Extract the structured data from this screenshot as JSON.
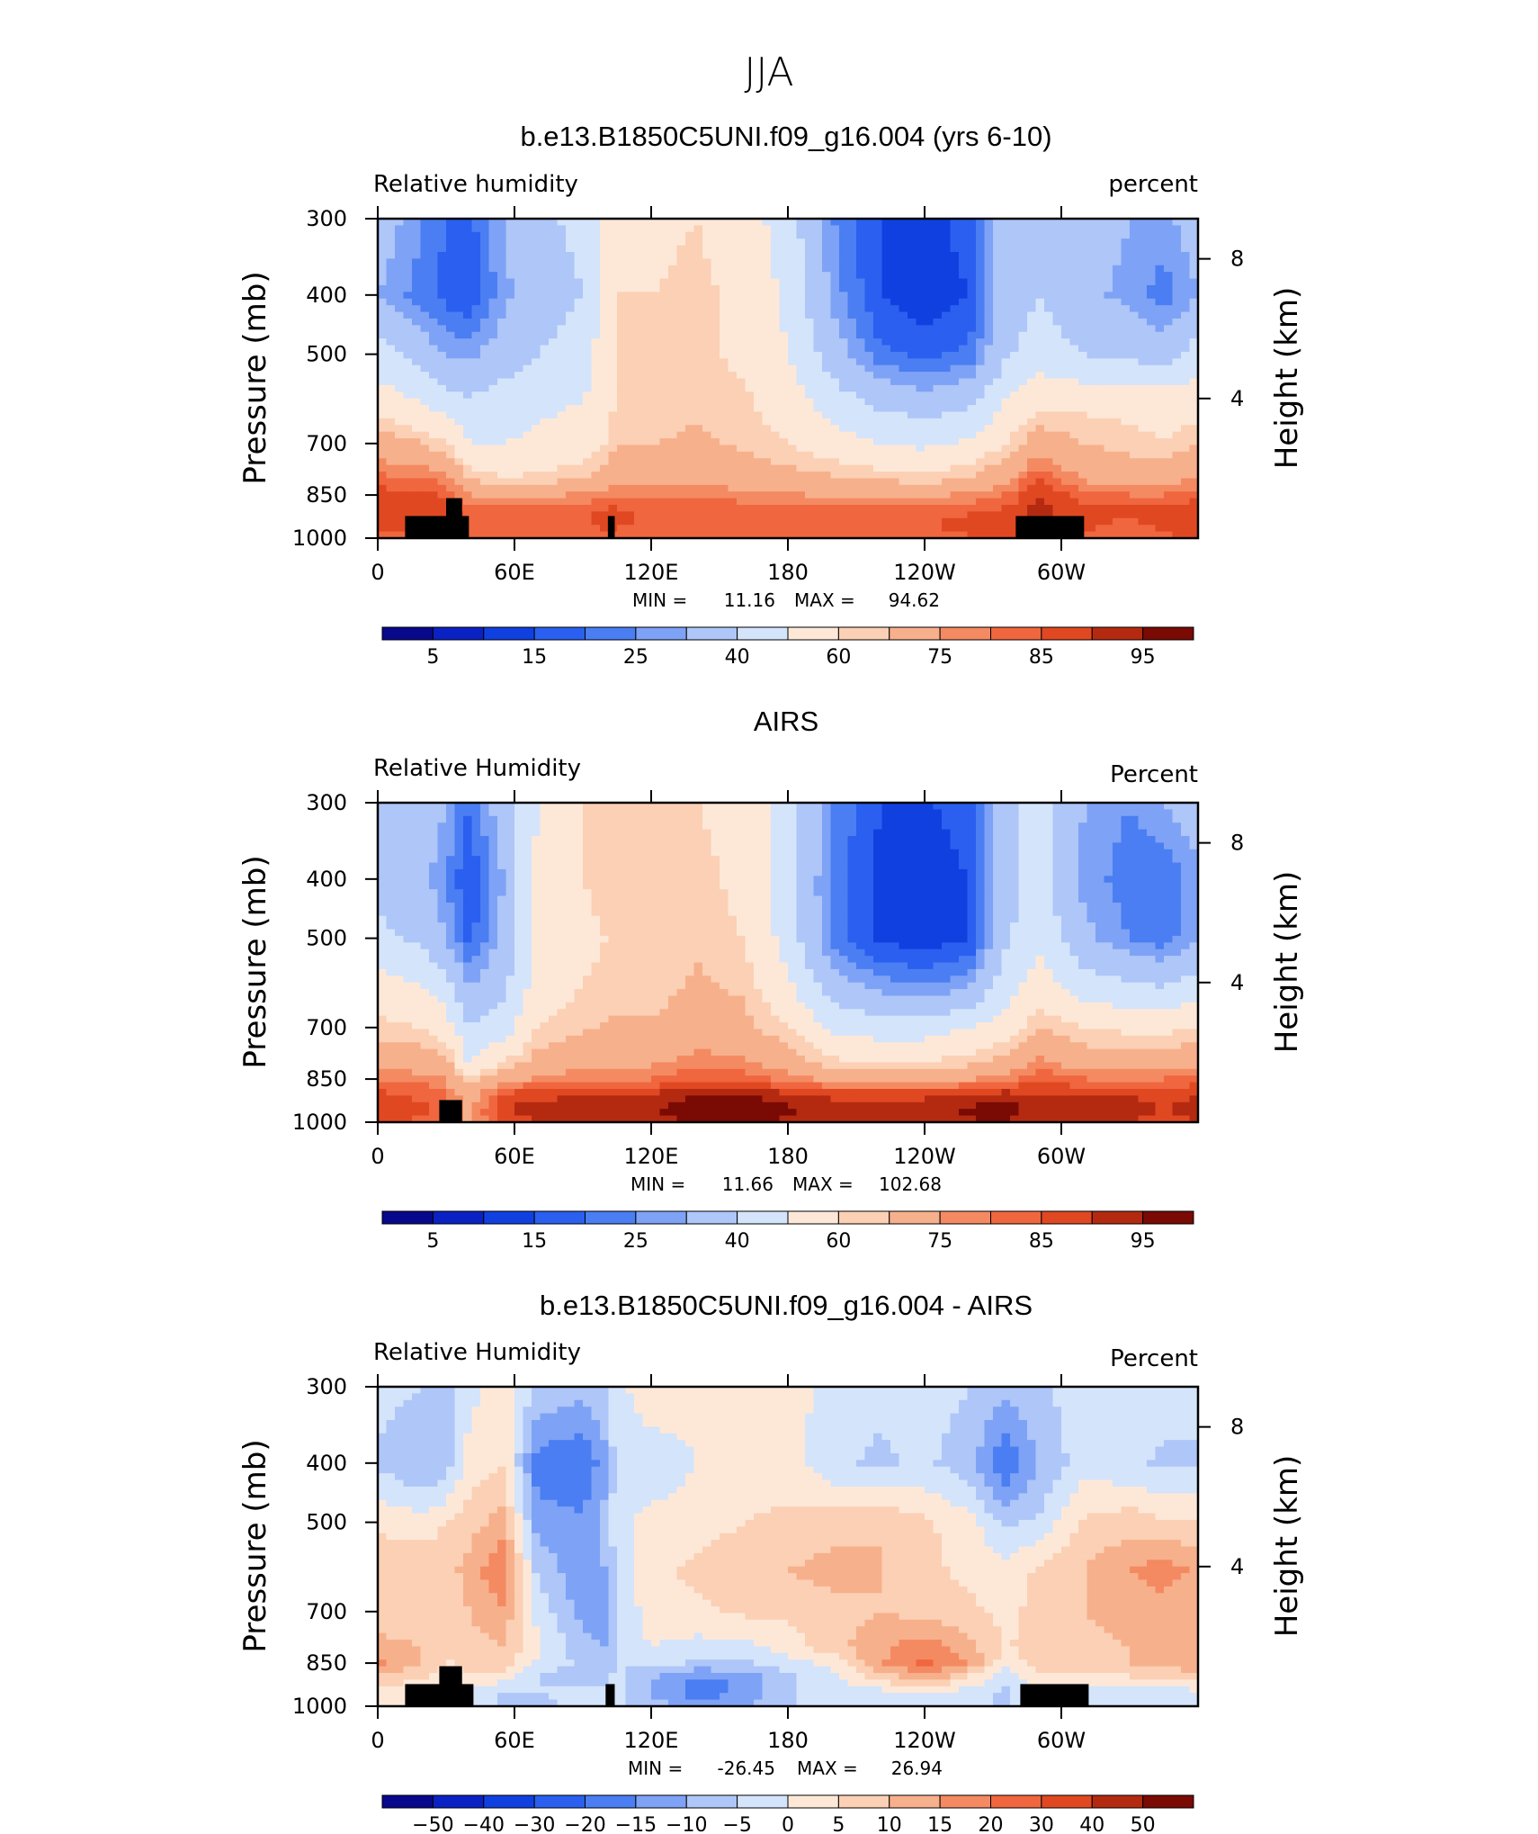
{
  "figure": {
    "title": "JJA"
  },
  "colors": {
    "rh_palette": [
      "#08088c",
      "#0a22c4",
      "#1140e0",
      "#2a5ff0",
      "#4a7ef2",
      "#7ea2f5",
      "#aec6f8",
      "#d4e4fb",
      "#fde8d8",
      "#fbd0b4",
      "#f7b08c",
      "#f48a62",
      "#f0663e",
      "#e04822",
      "#b42a10",
      "#7a0a04"
    ],
    "diff_palette": [
      "#08088c",
      "#0a22c4",
      "#1140e0",
      "#2a5ff0",
      "#4a7ef2",
      "#7ea2f5",
      "#aec6f8",
      "#d4e4fb",
      "#fde8d8",
      "#fbd0b4",
      "#f7b08c",
      "#f48a62",
      "#f0663e",
      "#e04822",
      "#b42a10",
      "#7a0a04"
    ],
    "terrain": "#000000"
  },
  "chart_data": [
    {
      "type": "heatmap",
      "title": "b.e13.B1850C5UNI.f09_g16.004 (yrs 6-10)",
      "left_label": "Relative humidity",
      "right_label": "percent",
      "ylabel": "Pressure (mb)",
      "ylabel_right": "Height (km)",
      "xticks": [
        "0",
        "60E",
        "120E",
        "180",
        "120W",
        "60W"
      ],
      "xtick_lon": [
        0,
        60,
        120,
        180,
        240,
        300
      ],
      "xlim": [
        0,
        360
      ],
      "yticks": [
        "300",
        "400",
        "500",
        "700",
        "850",
        "1000"
      ],
      "ytick_values": [
        300,
        400,
        500,
        700,
        850,
        1000
      ],
      "right_ticks": [
        "8",
        "4"
      ],
      "right_tick_values": [
        8,
        4
      ],
      "ylim": [
        1000,
        300
      ],
      "stats": {
        "min_label": "MIN =",
        "min": "11.16",
        "max_label": "MAX =",
        "max": "94.62"
      },
      "colorbar_levels": [
        "5",
        "15",
        "25",
        "40",
        "60",
        "75",
        "85",
        "95"
      ],
      "field": {
        "lon": [
          0,
          20,
          30,
          40,
          55,
          70,
          90,
          100,
          105,
          120,
          140,
          160,
          180,
          200,
          220,
          240,
          260,
          275,
          290,
          310,
          330,
          345,
          360
        ],
        "p": [
          300,
          400,
          500,
          600,
          700,
          800,
          850,
          900,
          950,
          1000
        ],
        "values": [
          [
            35,
            25,
            20,
            18,
            30,
            38,
            42,
            55,
            60,
            58,
            60,
            55,
            45,
            25,
            15,
            12,
            18,
            35,
            40,
            35,
            30,
            28,
            35
          ],
          [
            30,
            22,
            18,
            15,
            28,
            35,
            40,
            55,
            60,
            60,
            62,
            58,
            48,
            28,
            15,
            11,
            15,
            35,
            40,
            32,
            28,
            22,
            30
          ],
          [
            45,
            35,
            30,
            28,
            35,
            40,
            45,
            55,
            62,
            62,
            62,
            58,
            50,
            35,
            22,
            18,
            22,
            38,
            45,
            40,
            38,
            35,
            45
          ],
          [
            55,
            50,
            45,
            42,
            45,
            48,
            50,
            55,
            62,
            62,
            64,
            62,
            55,
            45,
            38,
            35,
            38,
            50,
            58,
            58,
            58,
            58,
            55
          ],
          [
            70,
            65,
            60,
            50,
            50,
            52,
            55,
            60,
            65,
            65,
            66,
            64,
            60,
            55,
            50,
            48,
            52,
            60,
            70,
            65,
            62,
            60,
            65
          ],
          [
            82,
            80,
            78,
            65,
            60,
            62,
            65,
            70,
            72,
            72,
            72,
            70,
            68,
            66,
            64,
            62,
            66,
            72,
            85,
            74,
            72,
            70,
            76
          ],
          [
            88,
            86,
            84,
            75,
            72,
            74,
            76,
            78,
            80,
            80,
            80,
            78,
            76,
            74,
            74,
            74,
            76,
            80,
            90,
            82,
            80,
            80,
            84
          ],
          [
            90,
            90,
            88,
            82,
            82,
            82,
            84,
            86,
            86,
            84,
            84,
            82,
            82,
            82,
            82,
            82,
            84,
            86,
            92,
            86,
            86,
            86,
            88
          ],
          [
            86,
            88,
            88,
            85,
            85,
            85,
            84,
            86,
            86,
            84,
            84,
            82,
            82,
            82,
            82,
            84,
            88,
            88,
            92,
            86,
            84,
            86,
            88
          ],
          [
            82,
            84,
            84,
            82,
            82,
            82,
            82,
            84,
            82,
            82,
            82,
            80,
            80,
            80,
            80,
            82,
            84,
            86,
            90,
            84,
            82,
            84,
            86
          ]
        ]
      },
      "terrain": [
        [
          12,
          40,
          920
        ],
        [
          30,
          37,
          860
        ],
        [
          101,
          104,
          920
        ],
        [
          280,
          310,
          920
        ]
      ]
    },
    {
      "type": "heatmap",
      "title": "AIRS",
      "left_label": "Relative Humidity",
      "right_label": "Percent",
      "ylabel": "Pressure (mb)",
      "ylabel_right": "Height (km)",
      "xticks": [
        "0",
        "60E",
        "120E",
        "180",
        "120W",
        "60W"
      ],
      "xtick_lon": [
        0,
        60,
        120,
        180,
        240,
        300
      ],
      "xlim": [
        0,
        360
      ],
      "yticks": [
        "300",
        "400",
        "500",
        "700",
        "850",
        "1000"
      ],
      "ytick_values": [
        300,
        400,
        500,
        700,
        850,
        1000
      ],
      "right_ticks": [
        "8",
        "4"
      ],
      "right_tick_values": [
        8,
        4
      ],
      "ylim": [
        1000,
        300
      ],
      "stats": {
        "min_label": "MIN =",
        "min": "11.66",
        "max_label": "MAX =",
        "max": "102.68"
      },
      "colorbar_levels": [
        "5",
        "15",
        "25",
        "40",
        "60",
        "75",
        "85",
        "95"
      ],
      "field": {
        "lon": [
          0,
          20,
          30,
          40,
          55,
          70,
          90,
          100,
          105,
          120,
          140,
          160,
          180,
          200,
          220,
          240,
          260,
          275,
          290,
          310,
          330,
          345,
          360
        ],
        "p": [
          300,
          400,
          500,
          600,
          700,
          800,
          850,
          900,
          950,
          1000
        ],
        "values": [
          [
            40,
            35,
            30,
            20,
            35,
            50,
            60,
            62,
            62,
            62,
            60,
            58,
            45,
            25,
            15,
            14,
            18,
            35,
            45,
            30,
            25,
            30,
            35
          ],
          [
            38,
            32,
            25,
            15,
            30,
            52,
            60,
            62,
            62,
            62,
            62,
            58,
            45,
            22,
            14,
            12,
            15,
            35,
            45,
            28,
            22,
            20,
            28
          ],
          [
            42,
            38,
            30,
            18,
            32,
            52,
            58,
            60,
            60,
            60,
            64,
            60,
            46,
            22,
            14,
            12,
            15,
            38,
            48,
            32,
            25,
            22,
            30
          ],
          [
            55,
            50,
            45,
            30,
            38,
            55,
            60,
            62,
            62,
            62,
            66,
            64,
            52,
            35,
            28,
            25,
            30,
            45,
            55,
            45,
            42,
            40,
            45
          ],
          [
            62,
            60,
            55,
            40,
            45,
            60,
            64,
            66,
            66,
            66,
            70,
            68,
            60,
            48,
            45,
            45,
            50,
            55,
            65,
            60,
            58,
            58,
            60
          ],
          [
            72,
            70,
            68,
            50,
            60,
            68,
            72,
            74,
            74,
            74,
            78,
            76,
            70,
            62,
            60,
            60,
            64,
            68,
            78,
            70,
            70,
            70,
            72
          ],
          [
            80,
            78,
            75,
            62,
            72,
            76,
            80,
            80,
            80,
            80,
            84,
            84,
            78,
            72,
            70,
            70,
            74,
            78,
            84,
            80,
            80,
            80,
            82
          ],
          [
            86,
            84,
            80,
            70,
            86,
            88,
            90,
            90,
            90,
            90,
            95,
            96,
            90,
            88,
            88,
            88,
            90,
            92,
            90,
            90,
            90,
            88,
            90
          ],
          [
            88,
            86,
            82,
            72,
            90,
            92,
            94,
            94,
            94,
            94,
            100,
            102,
            96,
            94,
            94,
            94,
            96,
            98,
            92,
            92,
            92,
            90,
            92
          ],
          [
            86,
            84,
            80,
            72,
            88,
            90,
            92,
            92,
            92,
            92,
            96,
            98,
            94,
            92,
            92,
            92,
            94,
            96,
            90,
            90,
            90,
            88,
            90
          ]
        ]
      },
      "terrain": [
        [
          27,
          37,
          920
        ]
      ]
    },
    {
      "type": "heatmap",
      "title": "b.e13.B1850C5UNI.f09_g16.004 - AIRS",
      "left_label": "Relative Humidity",
      "right_label": "Percent",
      "ylabel": "Pressure (mb)",
      "ylabel_right": "Height (km)",
      "xticks": [
        "0",
        "60E",
        "120E",
        "180",
        "120W",
        "60W"
      ],
      "xtick_lon": [
        0,
        60,
        120,
        180,
        240,
        300
      ],
      "xlim": [
        0,
        360
      ],
      "yticks": [
        "300",
        "400",
        "500",
        "700",
        "850",
        "1000"
      ],
      "ytick_values": [
        300,
        400,
        500,
        700,
        850,
        1000
      ],
      "right_ticks": [
        "8",
        "4"
      ],
      "right_tick_values": [
        8,
        4
      ],
      "ylim": [
        1000,
        300
      ],
      "stats": {
        "min_label": "MIN =",
        "min": "-26.45",
        "max_label": "MAX =",
        "max": "26.94"
      },
      "colorbar_levels": [
        "-50",
        "-40",
        "-30",
        "-20",
        "-15",
        "-10",
        "-5",
        "0",
        "5",
        "10",
        "15",
        "20",
        "30",
        "40",
        "50"
      ],
      "field": {
        "lon": [
          0,
          20,
          30,
          40,
          55,
          70,
          90,
          100,
          105,
          120,
          140,
          160,
          180,
          200,
          220,
          240,
          260,
          275,
          290,
          310,
          330,
          345,
          360
        ],
        "p": [
          300,
          400,
          500,
          600,
          700,
          800,
          850,
          900,
          950,
          1000
        ],
        "values": [
          [
            -3,
            -5,
            -6,
            -2,
            3,
            -6,
            -8,
            -5,
            -2,
            4,
            2,
            3,
            2,
            -2,
            -4,
            -3,
            -5,
            -8,
            -6,
            -2,
            -2,
            -3,
            -3
          ],
          [
            -6,
            -10,
            -8,
            2,
            5,
            -18,
            -20,
            -12,
            -2,
            -4,
            0,
            3,
            3,
            -4,
            -6,
            -4,
            -8,
            -20,
            -10,
            -2,
            -4,
            -6,
            -6
          ],
          [
            4,
            2,
            5,
            8,
            12,
            -12,
            -14,
            -8,
            -2,
            2,
            3,
            5,
            6,
            8,
            10,
            6,
            2,
            -6,
            -4,
            6,
            8,
            6,
            6
          ],
          [
            8,
            10,
            8,
            12,
            20,
            -6,
            -14,
            -10,
            -3,
            4,
            6,
            8,
            10,
            12,
            10,
            6,
            4,
            2,
            6,
            10,
            15,
            18,
            14
          ],
          [
            6,
            8,
            6,
            10,
            14,
            -2,
            -12,
            -12,
            -4,
            2,
            4,
            6,
            6,
            8,
            10,
            8,
            6,
            4,
            6,
            10,
            12,
            12,
            10
          ],
          [
            12,
            10,
            8,
            8,
            10,
            2,
            -8,
            -10,
            -4,
            0,
            -2,
            -2,
            2,
            8,
            14,
            18,
            12,
            4,
            8,
            8,
            10,
            10,
            12
          ],
          [
            16,
            10,
            4,
            6,
            8,
            -2,
            -6,
            -8,
            -5,
            -3,
            -6,
            -6,
            -2,
            2,
            14,
            22,
            14,
            2,
            6,
            6,
            10,
            10,
            14
          ],
          [
            8,
            6,
            2,
            4,
            2,
            -5,
            -8,
            -6,
            -4,
            -10,
            -16,
            -14,
            -6,
            -2,
            6,
            14,
            4,
            -4,
            4,
            4,
            4,
            6,
            8
          ],
          [
            2,
            0,
            -2,
            -2,
            -6,
            -5,
            -4,
            -4,
            -3,
            -10,
            -18,
            -14,
            -6,
            -2,
            -2,
            0,
            -2,
            -6,
            -2,
            -4,
            -2,
            -2,
            -2
          ],
          [
            2,
            0,
            -2,
            -2,
            -6,
            -6,
            -4,
            -4,
            -3,
            -8,
            -12,
            -10,
            -6,
            -2,
            -2,
            0,
            -2,
            -6,
            -2,
            -4,
            -2,
            -2,
            -2
          ]
        ]
      },
      "terrain": [
        [
          12,
          42,
          920
        ],
        [
          27,
          37,
          860
        ],
        [
          100,
          104,
          920
        ],
        [
          282,
          312,
          920
        ]
      ]
    }
  ]
}
